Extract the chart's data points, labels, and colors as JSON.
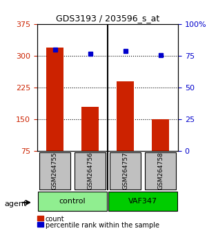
{
  "title": "GDS3193 / 203596_s_at",
  "samples": [
    "GSM264755",
    "GSM264756",
    "GSM264757",
    "GSM264758"
  ],
  "counts": [
    320,
    180,
    240,
    150
  ],
  "percentiles": [
    80,
    77,
    79,
    76
  ],
  "ylim_left": [
    75,
    375
  ],
  "ylim_right": [
    0,
    100
  ],
  "yticks_left": [
    75,
    150,
    225,
    300,
    375
  ],
  "yticks_right": [
    0,
    25,
    50,
    75,
    100
  ],
  "ytick_labels_right": [
    "0",
    "25",
    "50",
    "75",
    "100%"
  ],
  "groups": [
    {
      "label": "control",
      "samples": [
        0,
        1
      ],
      "color": "#90EE90"
    },
    {
      "label": "VAF347",
      "samples": [
        2,
        3
      ],
      "color": "#00CC00"
    }
  ],
  "group_label": "agent",
  "bar_color": "#CC2200",
  "dot_color": "#0000CC",
  "bar_width": 0.5,
  "grid_color": "#000000",
  "sample_box_color": "#C0C0C0",
  "legend_items": [
    {
      "color": "#CC2200",
      "label": "count"
    },
    {
      "color": "#0000CC",
      "label": "percentile rank within the sample"
    }
  ]
}
